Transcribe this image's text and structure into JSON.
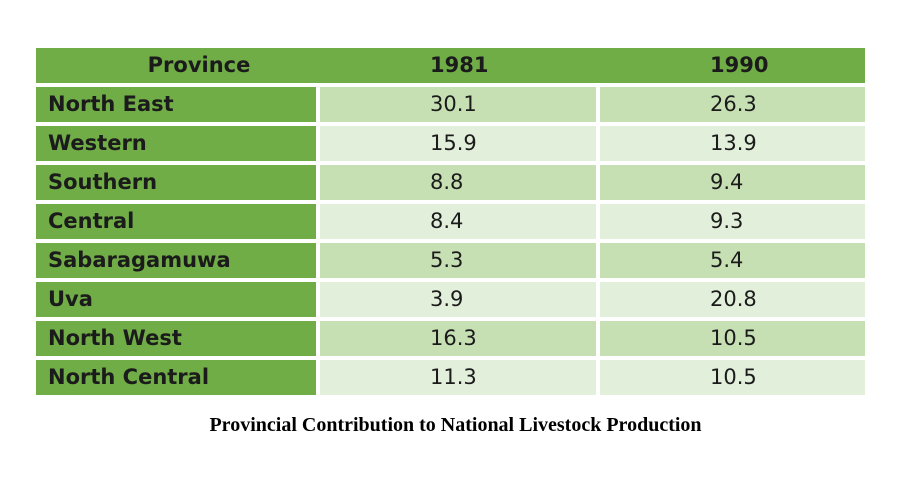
{
  "chart_data": {
    "type": "table",
    "title": "Provincial Contribution to National Livestock Production",
    "columns": [
      "Province",
      "1981",
      "1990"
    ],
    "categories": [
      "North East",
      "Western",
      "Southern",
      "Central",
      "Sabaragamuwa",
      "Uva",
      "North West",
      "North Central"
    ],
    "series": [
      {
        "name": "1981",
        "values": [
          30.1,
          15.9,
          8.8,
          8.4,
          5.3,
          3.9,
          16.3,
          11.3
        ]
      },
      {
        "name": "1990",
        "values": [
          26.3,
          13.9,
          9.4,
          9.3,
          5.4,
          20.8,
          10.5,
          10.5
        ]
      }
    ],
    "layout": {
      "header_background": "#70AD47",
      "first_column_background": "#70AD47",
      "row_shade_dark": "#C6E0B4",
      "row_shade_light": "#E2EFDA",
      "text_color": "#1b1b1b",
      "divider_color": "#ffffff"
    }
  }
}
